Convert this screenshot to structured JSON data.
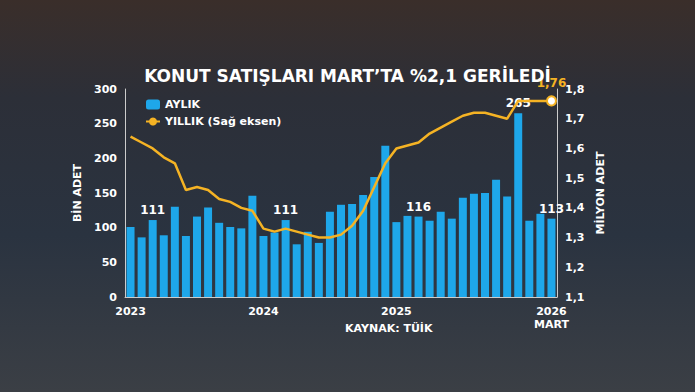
{
  "chart_data": {
    "type": "bar",
    "title": "KONUT SATIŞLARI MART’TA %2,1 GERİLEDİ",
    "source": "KAYNAK: TÜİK",
    "y_label": "BİN ADET",
    "y2_label": "MİLYON ADET",
    "categories": [
      "2023",
      null,
      null,
      null,
      null,
      null,
      null,
      null,
      null,
      null,
      null,
      null,
      "2024",
      null,
      null,
      null,
      null,
      null,
      null,
      null,
      null,
      null,
      null,
      null,
      "2025",
      null,
      null,
      null,
      null,
      null,
      null,
      null,
      null,
      null,
      null,
      null,
      null,
      null,
      "2026\nMART"
    ],
    "series": [
      {
        "name": "AYLIK",
        "type": "bar",
        "color": "#1ea7ea",
        "values": [
          101,
          86,
          111,
          89,
          130,
          88,
          116,
          129,
          107,
          101,
          99,
          146,
          88,
          93,
          111,
          76,
          94,
          78,
          123,
          133,
          134,
          147,
          173,
          218,
          108,
          117,
          116,
          110,
          123,
          113,
          143,
          149,
          150,
          169,
          145,
          265,
          110,
          120,
          113
        ],
        "annotations": [
          {
            "index": 2,
            "text": "111"
          },
          {
            "index": 14,
            "text": "111"
          },
          {
            "index": 26,
            "text": "116"
          },
          {
            "index": 35,
            "text": "265"
          },
          {
            "index": 38,
            "text": "113"
          }
        ]
      },
      {
        "name": "YILLIK (Sağ eksen)",
        "type": "line",
        "axis": "y2",
        "color": "#f5b324",
        "values": [
          1.64,
          1.62,
          1.6,
          1.57,
          1.55,
          1.46,
          1.47,
          1.46,
          1.43,
          1.42,
          1.4,
          1.39,
          1.33,
          1.32,
          1.33,
          1.32,
          1.31,
          1.3,
          1.3,
          1.31,
          1.34,
          1.39,
          1.47,
          1.55,
          1.6,
          1.61,
          1.62,
          1.65,
          1.67,
          1.69,
          1.71,
          1.72,
          1.72,
          1.71,
          1.7,
          1.76,
          1.76,
          1.76,
          1.76
        ],
        "annotations": [
          {
            "index": 38,
            "text": "1,76"
          }
        ]
      }
    ],
    "ylim": [
      0,
      300
    ],
    "yticks": [
      0,
      50,
      100,
      150,
      200,
      250,
      300
    ],
    "y2lim": [
      1.1,
      1.8
    ],
    "y2ticks": [
      {
        "value": 1.1,
        "label": "1,1"
      },
      {
        "value": 1.2,
        "label": "1,2"
      },
      {
        "value": 1.3,
        "label": "1,3"
      },
      {
        "value": 1.4,
        "label": "1,4"
      },
      {
        "value": 1.5,
        "label": "1,5"
      },
      {
        "value": 1.6,
        "label": "1,6"
      },
      {
        "value": 1.7,
        "label": "1,7"
      },
      {
        "value": 1.8,
        "label": "1,8"
      }
    ],
    "grid": false,
    "legend": "top-left"
  }
}
